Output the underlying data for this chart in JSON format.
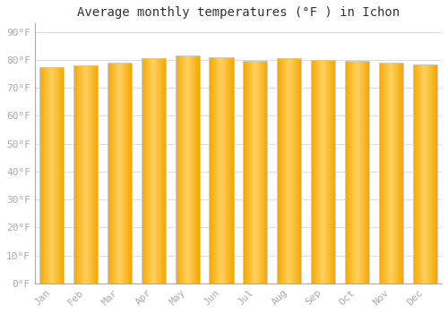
{
  "title": "Average monthly temperatures (°F ) in Ichon",
  "months": [
    "Jan",
    "Feb",
    "Mar",
    "Apr",
    "May",
    "Jun",
    "Jul",
    "Aug",
    "Sep",
    "Oct",
    "Nov",
    "Dec"
  ],
  "values": [
    77.5,
    78.0,
    79.0,
    80.5,
    81.5,
    81.0,
    79.5,
    80.5,
    80.0,
    79.5,
    79.0,
    78.5
  ],
  "bar_color_center": "#FFD060",
  "bar_color_edge": "#F5A800",
  "bar_border_color": "#CCCCCC",
  "background_color": "#FFFFFF",
  "plot_bg_color": "#FFFFFF",
  "grid_color": "#DDDDDD",
  "yticks": [
    0,
    10,
    20,
    30,
    40,
    50,
    60,
    70,
    80,
    90
  ],
  "ylim": [
    0,
    93
  ],
  "title_fontsize": 10,
  "tick_fontsize": 8,
  "tick_color": "#AAAAAA",
  "font_family": "monospace",
  "bar_width": 0.72
}
